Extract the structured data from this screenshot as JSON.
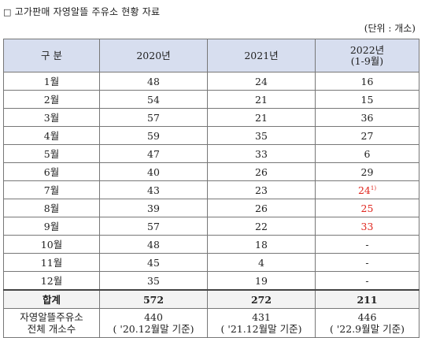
{
  "title": "고가판매 자영알뜰 주유소 현황 자료",
  "title_icon": "□",
  "unit": "(단위 : 개소)",
  "headers": {
    "col0": "구 분",
    "col1": "2020년",
    "col2": "2021년",
    "col3_line1": "2022년",
    "col3_line2": "(1-9월)"
  },
  "rows": [
    {
      "month": "1월",
      "y2020": "48",
      "y2021": "24",
      "y2022": "16"
    },
    {
      "month": "2월",
      "y2020": "54",
      "y2021": "21",
      "y2022": "15"
    },
    {
      "month": "3월",
      "y2020": "57",
      "y2021": "21",
      "y2022": "36"
    },
    {
      "month": "4월",
      "y2020": "59",
      "y2021": "35",
      "y2022": "27"
    },
    {
      "month": "5월",
      "y2020": "47",
      "y2021": "33",
      "y2022": "6"
    },
    {
      "month": "6월",
      "y2020": "40",
      "y2021": "26",
      "y2022": "29"
    },
    {
      "month": "7월",
      "y2020": "43",
      "y2021": "23",
      "y2022": "24",
      "y2022_note": "1)"
    },
    {
      "month": "8월",
      "y2020": "39",
      "y2021": "26",
      "y2022": "25"
    },
    {
      "month": "9월",
      "y2020": "57",
      "y2021": "22",
      "y2022": "33"
    },
    {
      "month": "10월",
      "y2020": "48",
      "y2021": "18",
      "y2022": "-"
    },
    {
      "month": "11월",
      "y2020": "45",
      "y2021": "4",
      "y2022": "-"
    },
    {
      "month": "12월",
      "y2020": "35",
      "y2021": "19",
      "y2022": "-"
    }
  ],
  "total": {
    "label": "합계",
    "y2020": "572",
    "y2021": "272",
    "y2022": "211"
  },
  "stations": {
    "label_line1": "자영알뜰주유소",
    "label_line2": "전체 개소수",
    "y2020": "440",
    "y2020_note": "( '20.12월말 기준)",
    "y2021": "431",
    "y2021_note": "( '21.12월말 기준)",
    "y2022": "446",
    "y2022_note": "( '22.9월말 기준)"
  },
  "colors": {
    "header_bg": "#d7deef",
    "highlight": "#e0261e",
    "border": "#777777"
  }
}
